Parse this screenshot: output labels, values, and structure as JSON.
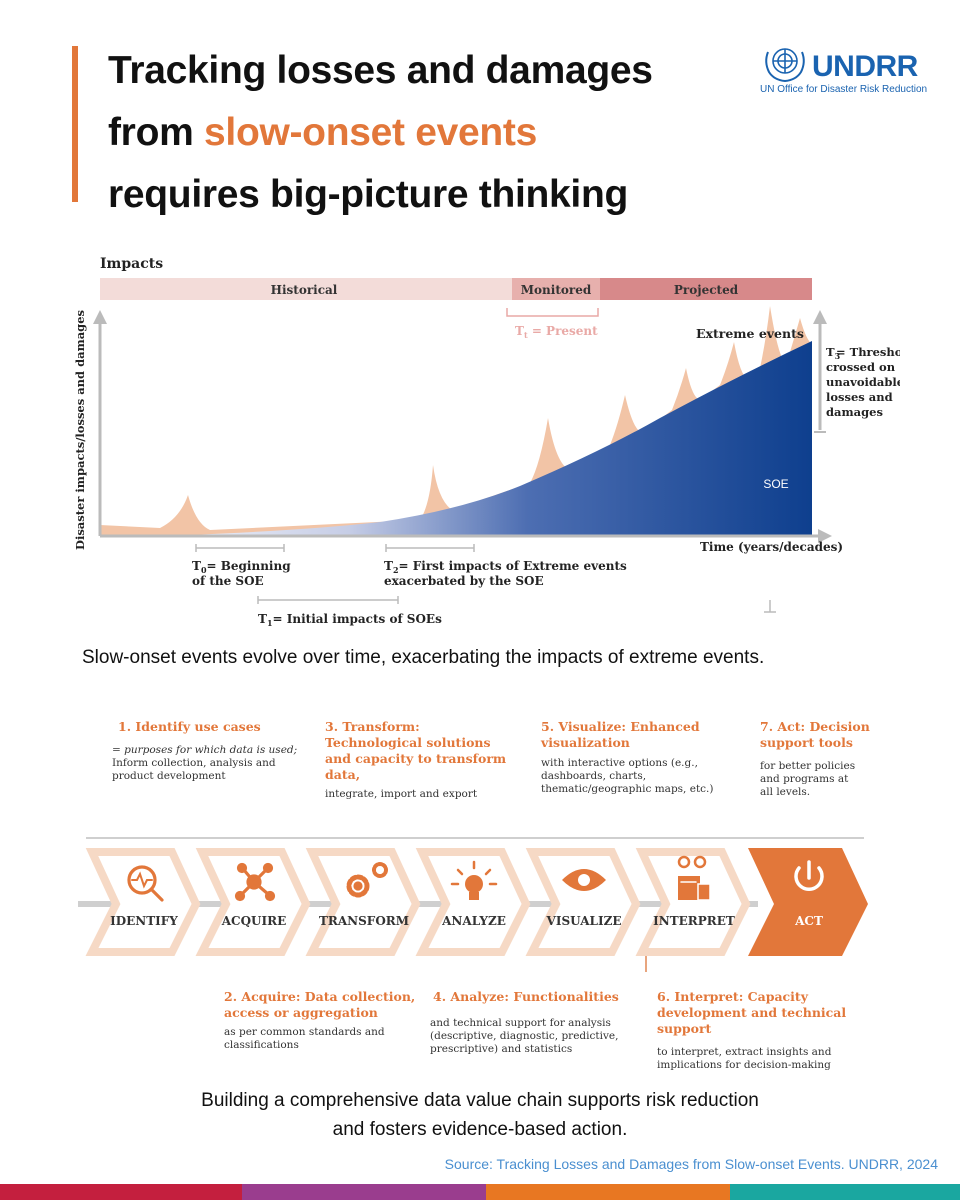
{
  "header": {
    "title_line1": "Tracking losses and damages",
    "title_line2_prefix": "from ",
    "title_line2_highlight": "slow-onset events",
    "title_line3": "requires big-picture thinking",
    "logo_text": "UNDRR",
    "logo_subtext": "UN Office for Disaster Risk Reduction"
  },
  "diagram1": {
    "impacts_label": "Impacts",
    "periods": [
      "Historical",
      "Monitored",
      "Projected"
    ],
    "tt_label": "T",
    "tt_sub": "t",
    "tt_rest": " = Present",
    "extreme_events": "Extreme events",
    "t3_label": "T",
    "t3_sub": "3",
    "t3_text": [
      "= Threshold",
      "crossed on",
      "unavoidable",
      "losses and",
      "damages"
    ],
    "y_axis": "Disaster impacts/losses and damages",
    "x_axis": "Time (years/decades)",
    "soe": "SOE",
    "t0_label": "T",
    "t0_sub": "0",
    "t0_text1": "= Beginning",
    "t0_text2": "of the SOE",
    "t2_label": "T",
    "t2_sub": "2",
    "t2_text1": "= First impacts of Extreme events",
    "t2_text2": "exacerbated by the SOE",
    "t1_label": "T",
    "t1_sub": "1",
    "t1_text": "= Initial impacts of SOEs",
    "colors": {
      "historical": "#f3dcd9",
      "monitored": "#e7b0ad",
      "projected": "#d7898a",
      "extreme": "#f2c4a6",
      "soe_dark": "#0e3f8e"
    }
  },
  "caption1": "Slow-onset events evolve over time, exacerbating the impacts of extreme events.",
  "chain": {
    "top_items": [
      {
        "title": "1. Identify use cases",
        "desc": [
          "= purposes for which data is used;",
          "Inform collection, analysis and",
          "product development"
        ]
      },
      {
        "title": "3. Transform:",
        "title2": "Technological solutions",
        "title3": "and capacity to transform",
        "title4": "data,",
        "desc": [
          "integrate, import and export"
        ]
      },
      {
        "title": "5. Visualize: Enhanced",
        "title2": "visualization",
        "desc": [
          "with interactive options (e.g.,",
          "dashboards, charts,",
          "thematic/geographic maps, etc.)"
        ]
      },
      {
        "title": "7. Act: Decision",
        "title2": "support tools",
        "desc": [
          "for better policies",
          "and programs at",
          "all levels."
        ]
      }
    ],
    "steps": [
      {
        "label": "IDENTIFY",
        "icon": "magnifier-pulse-icon"
      },
      {
        "label": "ACQUIRE",
        "icon": "network-icon"
      },
      {
        "label": "TRANSFORM",
        "icon": "gears-icon"
      },
      {
        "label": "ANALYZE",
        "icon": "lightbulb-icon"
      },
      {
        "label": "VISUALIZE",
        "icon": "eye-icon"
      },
      {
        "label": "INTERPRET",
        "icon": "glasses-document-icon"
      },
      {
        "label": "ACT",
        "icon": "power-icon"
      }
    ],
    "bottom_items": [
      {
        "title": "2. Acquire: Data collection,",
        "title2": "access or aggregation",
        "desc": [
          "as per common standards and",
          "classifications"
        ]
      },
      {
        "title": "4. Analyze: Functionalities",
        "desc": [
          "and technical support for analysis",
          "(descriptive, diagnostic, predictive,",
          "prescriptive) and statistics"
        ]
      },
      {
        "title": "6. Interpret: Capacity",
        "title2": "development and technical",
        "title3": "support",
        "desc": [
          "to interpret, extract insights and",
          "implications for decision-making"
        ]
      }
    ],
    "colors": {
      "orange": "#e2773a",
      "light": "#f6d9c5"
    }
  },
  "caption2_line1": "Building a comprehensive data value chain supports risk reduction",
  "caption2_line2": "and fosters evidence-based action.",
  "source": "Source: Tracking Losses and Damages from Slow-onset Events. UNDRR, 2024",
  "stripe_colors": [
    "#c41f3e",
    "#9a3d8e",
    "#e87722",
    "#1aa7a0"
  ]
}
